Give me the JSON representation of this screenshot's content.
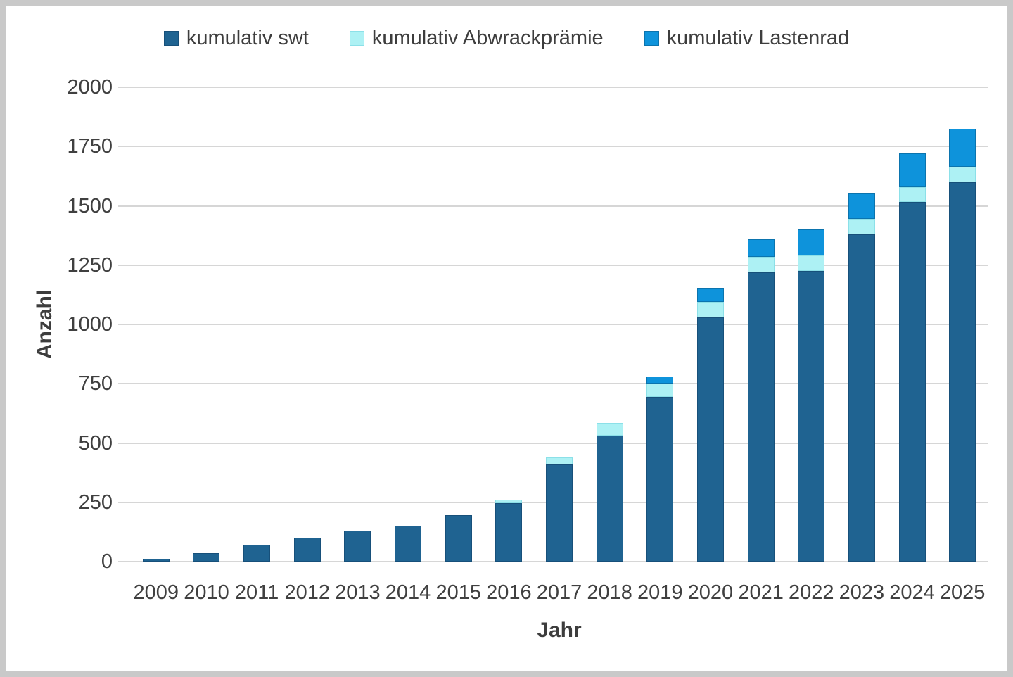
{
  "frame": {
    "border_color": "#c9c9c9",
    "background": "#ffffff",
    "gridline_color": "#d6d6d6",
    "text_color": "#404040"
  },
  "chart_data": {
    "type": "bar",
    "stacked": true,
    "title": "",
    "xlabel": "Jahr",
    "ylabel": "Anzahl",
    "ylim": [
      0,
      2000
    ],
    "ytick_step": 250,
    "grid": true,
    "legend_position": "top",
    "categories": [
      "2009",
      "2010",
      "2011",
      "2012",
      "2013",
      "2014",
      "2015",
      "2016",
      "2017",
      "2018",
      "2019",
      "2020",
      "2021",
      "2022",
      "2023",
      "2024",
      "2025"
    ],
    "series": [
      {
        "name": "kumulativ swt",
        "color": "#1F6391",
        "border_color": "#17507A",
        "values": [
          13,
          35,
          70,
          100,
          130,
          150,
          195,
          245,
          410,
          530,
          695,
          1030,
          1220,
          1225,
          1380,
          1515,
          1600
        ]
      },
      {
        "name": "kumulativ Abwrackprämie",
        "color": "#ADF1F4",
        "border_color": "#8CE0E8",
        "values": [
          0,
          0,
          0,
          0,
          0,
          0,
          0,
          15,
          30,
          55,
          55,
          65,
          65,
          65,
          65,
          65,
          65
        ]
      },
      {
        "name": "kumulativ Lastenrad",
        "color": "#0E93DB",
        "border_color": "#0B74AE",
        "values": [
          0,
          0,
          0,
          0,
          0,
          0,
          0,
          0,
          0,
          0,
          30,
          60,
          75,
          110,
          110,
          140,
          160
        ]
      }
    ],
    "totals": [
      13,
      35,
      70,
      100,
      130,
      150,
      195,
      260,
      440,
      585,
      780,
      1155,
      1360,
      1400,
      1555,
      1720,
      1825
    ],
    "y_tick_labels": [
      "0",
      "250",
      "500",
      "750",
      "1000",
      "1250",
      "1500",
      "1750",
      "2000"
    ]
  }
}
